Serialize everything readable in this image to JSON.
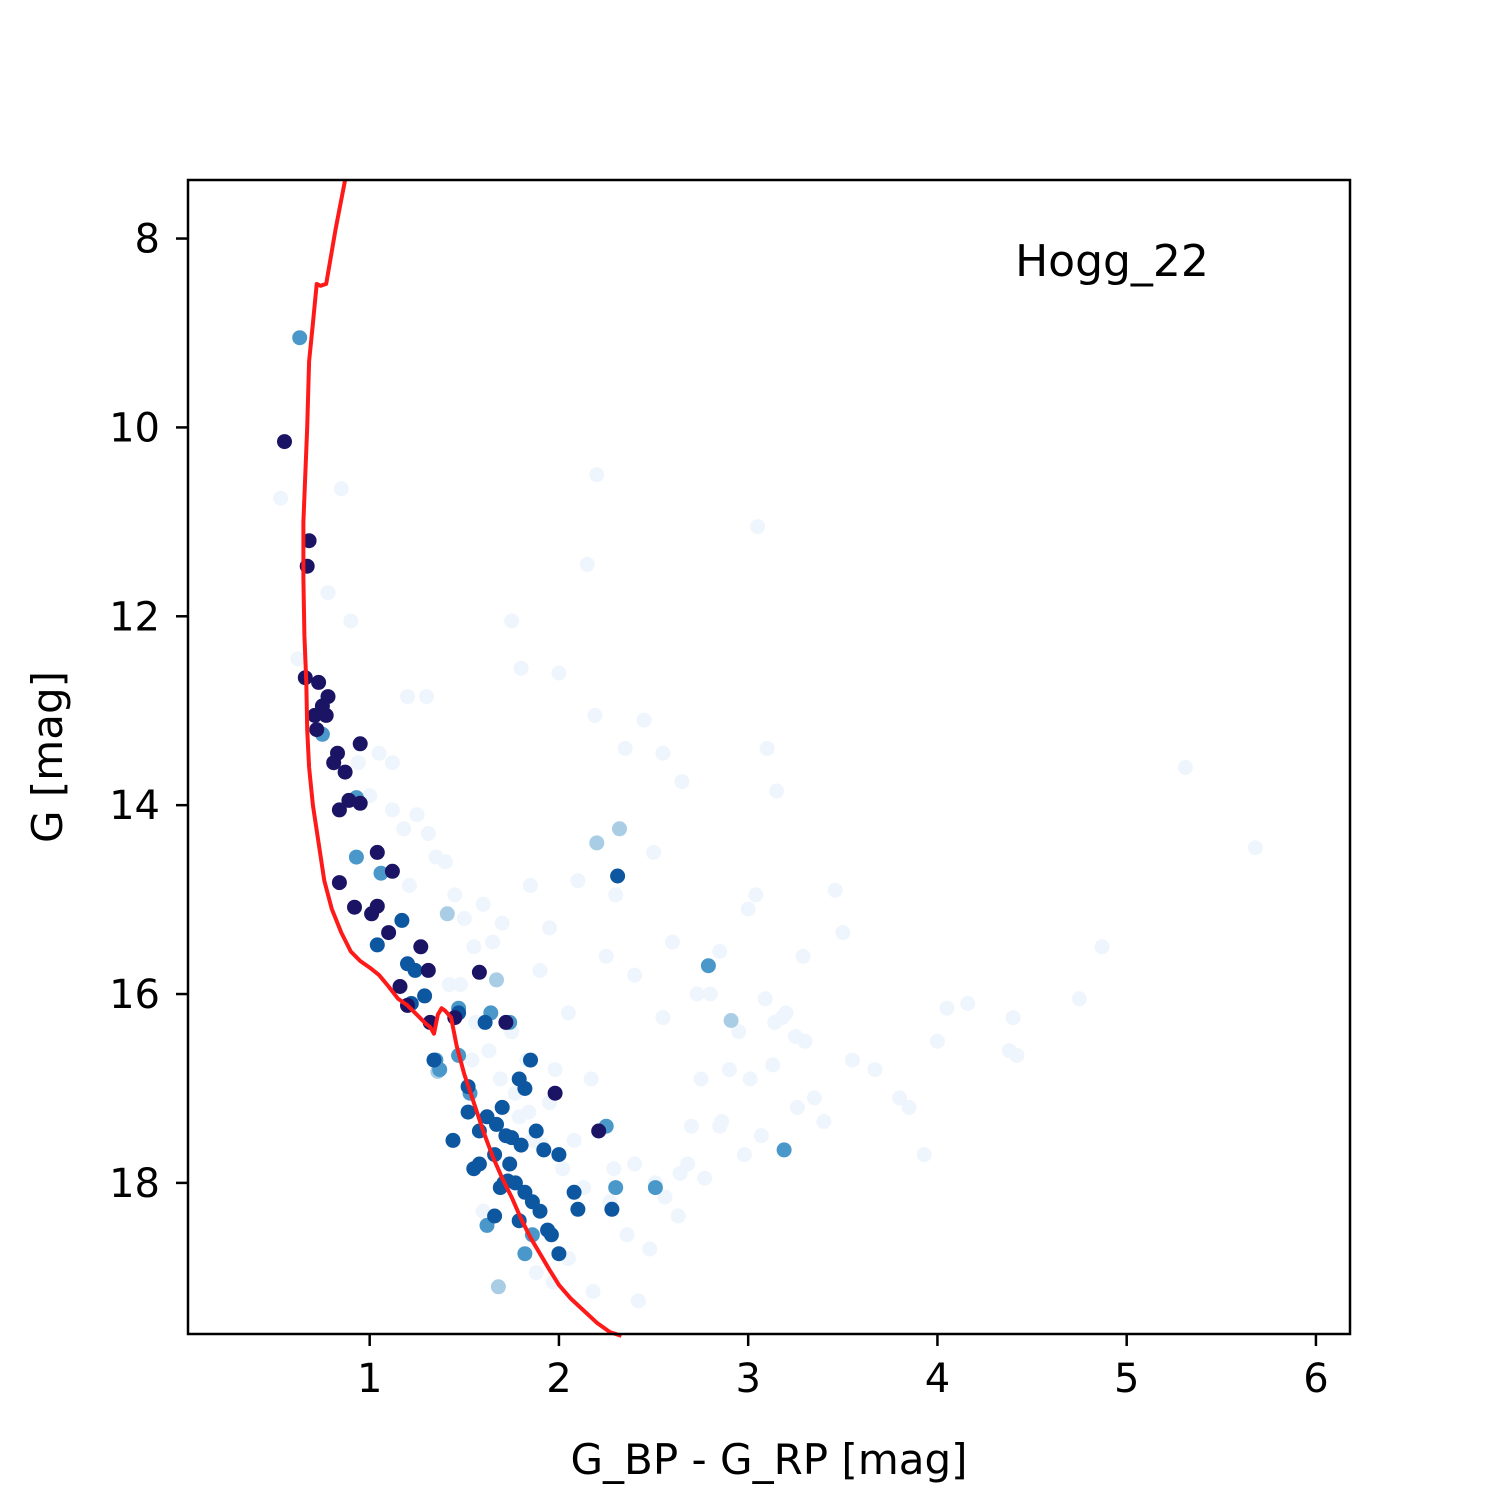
{
  "chart_data": {
    "type": "scatter",
    "title": "",
    "annotation": "Hogg_22",
    "xlabel": "G_BP - G_RP [mag]",
    "ylabel": "G [mag]",
    "xlim": [
      0.04,
      6.18
    ],
    "ylim": [
      19.6,
      7.38
    ],
    "y_inverted": true,
    "xticks": [
      1,
      2,
      3,
      4,
      5,
      6
    ],
    "yticks": [
      8,
      10,
      12,
      14,
      16,
      18
    ],
    "grid": false,
    "colors": {
      "members_high": "#1b1464",
      "members_mid": "#0d56a0",
      "members_low": "#4a98c9",
      "members_faint": "#a9cde4",
      "field": "#eef5fc",
      "isochrone": "#ff1a1a"
    },
    "series": [
      {
        "name": "",
        "level": "high",
        "x": [
          0.55,
          0.68,
          0.67,
          0.66,
          0.73,
          0.78,
          0.75,
          0.71,
          0.77,
          0.72,
          0.83,
          0.95,
          0.81,
          0.87,
          0.95,
          0.84,
          0.89,
          1.04,
          1.12,
          0.84,
          1.04,
          1.01,
          0.92,
          1.1,
          1.27,
          1.31,
          1.16,
          1.2,
          1.32,
          1.45,
          1.58,
          1.72,
          1.98,
          2.21
        ],
        "y": [
          10.15,
          11.2,
          11.47,
          12.65,
          12.7,
          12.85,
          12.95,
          13.05,
          13.05,
          13.2,
          13.45,
          13.35,
          13.55,
          13.65,
          13.98,
          14.05,
          13.95,
          14.5,
          14.7,
          14.82,
          15.07,
          15.15,
          15.08,
          15.35,
          15.5,
          15.75,
          15.92,
          16.12,
          16.3,
          16.25,
          15.77,
          16.3,
          17.05,
          17.45
        ]
      },
      {
        "name": "",
        "level": "mid",
        "x": [
          1.17,
          1.24,
          1.2,
          1.29,
          1.47,
          1.52,
          1.34,
          1.7,
          1.79,
          1.82,
          1.85,
          1.58,
          1.62,
          1.67,
          1.72,
          1.75,
          1.8,
          1.88,
          1.92,
          1.44,
          1.55,
          1.58,
          1.66,
          1.69,
          1.74,
          1.77,
          1.82,
          1.86,
          1.9,
          1.96,
          2.0,
          2.08,
          2.1,
          2.28,
          2.31,
          1.66,
          1.71,
          1.79,
          1.94,
          2.0,
          1.04,
          1.22,
          1.52,
          1.61,
          1.73
        ],
        "y": [
          15.22,
          15.75,
          15.68,
          16.02,
          16.2,
          16.98,
          16.7,
          17.2,
          16.9,
          17.0,
          16.7,
          17.45,
          17.3,
          17.38,
          17.5,
          17.52,
          17.6,
          17.45,
          17.65,
          17.55,
          17.85,
          17.8,
          17.7,
          18.05,
          17.8,
          18.0,
          18.1,
          18.2,
          18.3,
          18.55,
          18.75,
          18.1,
          18.28,
          18.28,
          14.75,
          18.35,
          18.0,
          18.4,
          18.5,
          17.7,
          15.48,
          16.1,
          17.25,
          16.3,
          17.98
        ]
      },
      {
        "name": "",
        "level": "low",
        "x": [
          0.63,
          0.75,
          0.93,
          0.93,
          1.06,
          1.35,
          1.47,
          1.64,
          1.74,
          1.62,
          1.82,
          2.25,
          2.3,
          2.51,
          2.79,
          3.19,
          1.37,
          1.47,
          1.53,
          1.86
        ],
        "y": [
          9.05,
          13.25,
          13.92,
          14.55,
          14.72,
          16.7,
          16.15,
          16.2,
          16.3,
          18.45,
          18.75,
          17.4,
          18.05,
          18.05,
          15.7,
          17.65,
          16.8,
          16.65,
          17.05,
          18.55
        ]
      },
      {
        "name": "",
        "level": "faint",
        "x": [
          1.41,
          1.67,
          2.2,
          2.32,
          2.91,
          1.68,
          1.36
        ],
        "y": [
          15.15,
          15.85,
          14.4,
          14.25,
          16.28,
          19.1,
          16.82
        ]
      },
      {
        "name": "",
        "level": "field",
        "x": [
          0.53,
          0.62,
          0.78,
          0.85,
          0.9,
          1.05,
          1.12,
          1.18,
          1.2,
          1.25,
          1.3,
          1.35,
          1.4,
          1.45,
          1.5,
          1.55,
          1.6,
          1.65,
          1.7,
          1.75,
          1.8,
          1.85,
          1.9,
          1.95,
          2.0,
          2.05,
          2.1,
          2.15,
          2.2,
          2.25,
          2.3,
          2.35,
          2.4,
          2.45,
          2.5,
          2.55,
          2.6,
          2.65,
          2.7,
          2.75,
          2.8,
          2.85,
          2.9,
          2.95,
          3.0,
          3.05,
          3.1,
          3.15,
          3.2,
          3.25,
          3.3,
          3.4,
          3.5,
          3.55,
          3.8,
          3.85,
          4.0,
          4.05,
          4.4,
          4.42,
          4.75,
          4.87,
          5.31,
          5.68,
          2.19,
          3.04,
          2.17,
          1.75,
          1.83,
          1.98,
          1.79,
          1.86,
          1.95,
          2.08,
          2.29,
          2.4,
          2.51,
          2.63,
          2.64,
          3.09,
          3.13,
          3.18,
          1.21,
          1.31,
          1.12,
          1.0,
          0.94,
          1.48,
          1.56,
          1.63,
          1.69,
          1.77,
          1.84,
          1.91,
          2.02,
          2.13,
          2.27,
          2.36,
          2.48,
          2.56,
          2.68,
          2.77,
          2.86,
          2.98,
          3.07,
          3.26,
          3.35,
          1.42,
          1.54,
          1.6,
          1.88,
          1.97,
          2.05,
          2.18,
          2.42,
          2.55,
          2.73,
          2.85,
          3.01,
          3.14,
          3.29,
          3.46,
          3.67,
          3.93,
          4.16,
          4.38
        ],
        "y": [
          10.75,
          12.45,
          11.75,
          10.65,
          12.05,
          13.45,
          13.55,
          14.25,
          12.85,
          14.1,
          12.85,
          14.55,
          14.6,
          14.95,
          15.2,
          15.5,
          15.05,
          15.45,
          15.25,
          12.05,
          12.55,
          14.85,
          15.75,
          15.3,
          12.6,
          16.2,
          14.8,
          11.45,
          10.5,
          15.6,
          14.95,
          13.4,
          15.8,
          13.1,
          14.5,
          13.45,
          15.45,
          13.75,
          17.4,
          16.9,
          16.0,
          15.55,
          16.8,
          16.4,
          15.1,
          11.05,
          13.4,
          13.85,
          16.2,
          16.45,
          16.5,
          17.35,
          15.35,
          16.7,
          17.1,
          17.2,
          16.5,
          16.15,
          16.25,
          16.65,
          16.05,
          15.5,
          13.6,
          14.45,
          13.05,
          14.95,
          16.9,
          16.4,
          16.7,
          16.8,
          17.3,
          17.55,
          17.15,
          17.55,
          17.85,
          17.8,
          18.0,
          18.35,
          17.9,
          16.05,
          16.75,
          16.25,
          14.85,
          14.3,
          14.05,
          13.9,
          13.55,
          15.9,
          16.3,
          16.6,
          16.9,
          17.05,
          17.25,
          17.6,
          17.85,
          18.05,
          18.2,
          18.55,
          18.7,
          18.15,
          17.8,
          17.95,
          17.35,
          17.7,
          17.5,
          17.2,
          17.1,
          15.9,
          16.7,
          18.3,
          18.95,
          19.05,
          18.8,
          19.15,
          19.25,
          16.25,
          16.0,
          17.4,
          16.9,
          16.3,
          15.6,
          14.9,
          16.8,
          17.7,
          16.1,
          16.6
        ]
      }
    ],
    "isochrone": {
      "x": [
        0.87,
        0.82,
        0.77,
        0.74,
        0.72,
        0.7,
        0.68,
        0.67,
        0.66,
        0.65,
        0.65,
        0.655,
        0.665,
        0.67,
        0.68,
        0.7,
        0.73,
        0.76,
        0.8,
        0.85,
        0.9,
        0.95,
        1.0,
        1.05,
        1.1,
        1.15,
        1.2,
        1.25,
        1.3,
        1.32,
        1.34,
        1.36,
        1.38,
        1.4,
        1.43,
        1.46,
        1.5,
        1.55,
        1.6,
        1.65,
        1.7,
        1.75,
        1.8,
        1.85,
        1.9,
        1.95,
        2.0,
        2.06,
        2.13,
        2.2,
        2.27,
        2.33
      ],
      "y": [
        7.38,
        7.9,
        8.48,
        8.5,
        8.48,
        8.9,
        9.3,
        10.0,
        10.5,
        11.0,
        11.6,
        12.2,
        12.7,
        13.2,
        13.6,
        14.0,
        14.4,
        14.8,
        15.1,
        15.35,
        15.55,
        15.65,
        15.72,
        15.8,
        15.92,
        16.05,
        16.12,
        16.22,
        16.32,
        16.35,
        16.42,
        16.22,
        16.15,
        16.18,
        16.25,
        16.55,
        16.85,
        17.15,
        17.45,
        17.72,
        17.95,
        18.15,
        18.38,
        18.58,
        18.75,
        18.92,
        19.08,
        19.22,
        19.35,
        19.48,
        19.58,
        19.62
      ]
    }
  }
}
